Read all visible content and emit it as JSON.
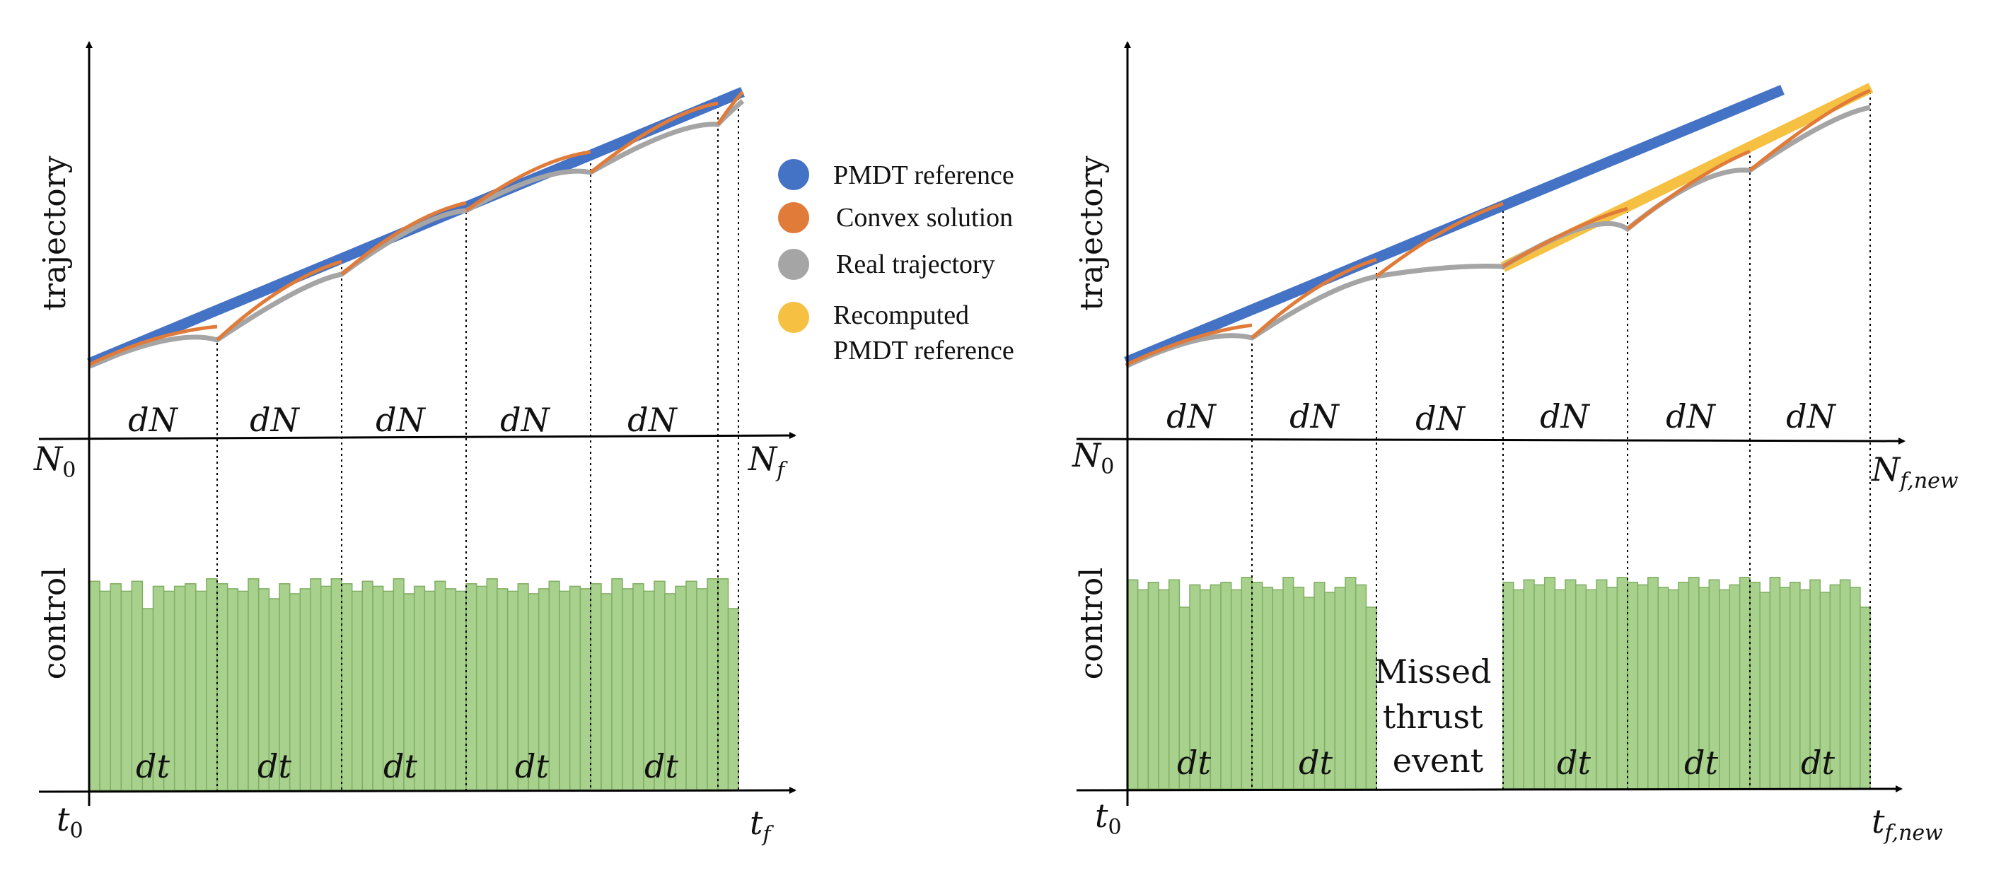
{
  "colors": {
    "pmdt": "#4472c4",
    "convex": "#e07b39",
    "real": "#a5a5a5",
    "recomputed": "#f6c142",
    "control_fill": "#a9d18e",
    "control_edge": "#7fae62",
    "axis": "#000000"
  },
  "legend": {
    "items": [
      {
        "label": "PMDT reference",
        "color_key": "pmdt"
      },
      {
        "label": "Convex solution",
        "color_key": "convex"
      },
      {
        "label": "Real trajectory",
        "color_key": "real"
      },
      {
        "label": "Recomputed",
        "color_key": "recomputed"
      }
    ],
    "recomputed_line2": "PMDT reference"
  },
  "left": {
    "ylabel_top": "trajectory",
    "ylabel_bottom": "control",
    "n0": {
      "main": "N",
      "sub": "0"
    },
    "nf": {
      "main": "N",
      "sub": "f"
    },
    "t0": {
      "main": "t",
      "sub": "0"
    },
    "tf": {
      "main": "t",
      "sub": "f"
    },
    "segment_label_top": "dN",
    "segment_label_bottom": "dt",
    "segment_count": 5,
    "control_levels": [
      [
        0.84,
        0.8,
        0.83,
        0.8,
        0.84,
        0.73,
        0.82,
        0.8,
        0.82,
        0.83,
        0.8,
        0.85
      ],
      [
        0.83,
        0.81,
        0.8,
        0.85,
        0.81,
        0.77,
        0.83,
        0.79,
        0.81,
        0.85,
        0.82,
        0.85
      ],
      [
        0.83,
        0.8,
        0.84,
        0.82,
        0.8,
        0.85,
        0.79,
        0.82,
        0.8,
        0.84,
        0.81,
        0.8
      ],
      [
        0.83,
        0.82,
        0.85,
        0.81,
        0.8,
        0.83,
        0.79,
        0.81,
        0.84,
        0.8,
        0.82,
        0.81
      ],
      [
        0.83,
        0.79,
        0.85,
        0.81,
        0.83,
        0.8,
        0.84,
        0.79,
        0.82,
        0.84,
        0.81,
        0.85
      ]
    ],
    "final_short_segment_levels": [
      0.85,
      0.73
    ]
  },
  "right": {
    "ylabel_top": "trajectory",
    "ylabel_bottom": "control",
    "n0": {
      "main": "N",
      "sub": "0"
    },
    "nf": {
      "main": "N",
      "sub": "f,new"
    },
    "t0": {
      "main": "t",
      "sub": "0"
    },
    "tf": {
      "main": "t",
      "sub": "f,new"
    },
    "segment_label_top": "dN",
    "segment_label_bottom": "dt",
    "segment_count": 6,
    "missed_segment_index": 2,
    "missed_text": [
      "Missed",
      "thrust",
      "event"
    ],
    "control_levels": [
      [
        0.84,
        0.8,
        0.83,
        0.8,
        0.84,
        0.73,
        0.82,
        0.8,
        0.82,
        0.83,
        0.8,
        0.85
      ],
      [
        0.83,
        0.81,
        0.8,
        0.85,
        0.81,
        0.77,
        0.83,
        0.79,
        0.81,
        0.85,
        0.82,
        0.73
      ],
      [],
      [
        0.83,
        0.8,
        0.84,
        0.82,
        0.85,
        0.8,
        0.84,
        0.82,
        0.8,
        0.84,
        0.81,
        0.85
      ],
      [
        0.83,
        0.82,
        0.85,
        0.81,
        0.8,
        0.83,
        0.85,
        0.81,
        0.84,
        0.8,
        0.82,
        0.85
      ],
      [
        0.83,
        0.79,
        0.85,
        0.81,
        0.83,
        0.8,
        0.84,
        0.79,
        0.82,
        0.84,
        0.81,
        0.73
      ]
    ]
  }
}
